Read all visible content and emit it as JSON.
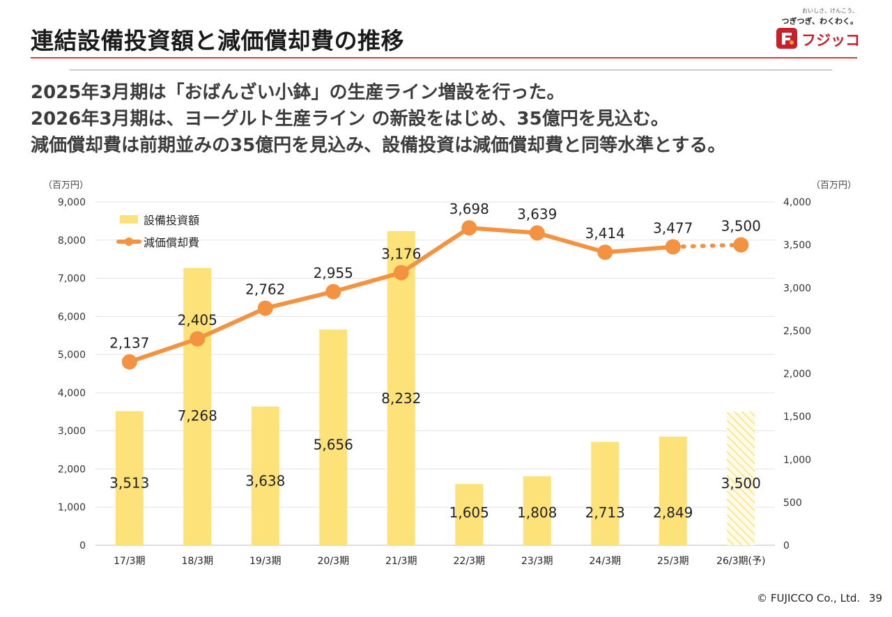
{
  "page": {
    "title": "連結設備投資額と減価償却費の推移",
    "headline": [
      "2025年3月期は「おばんざい小鉢」の生産ライン増設を行った。",
      "2026年3月期は、ヨーグルト生産ライン の新設をはじめ、35億円を見込む。",
      "減価償却費は前期並みの35億円を見込み、設備投資は減価償却費と同等水準とする。"
    ],
    "logo": {
      "tagline1": "おいしさ、けんこう、",
      "tagline2": "つぎつぎ、わくわく。",
      "wordmark": "フジッコ",
      "colors": {
        "red": "#c6202c",
        "orange": "#f0a020"
      }
    },
    "footer": {
      "copyright": "© FUJICCO Co., Ltd.",
      "page_number": "39"
    }
  },
  "chart_data": {
    "type": "bar",
    "categories": [
      "17/3期",
      "18/3期",
      "19/3期",
      "20/3期",
      "21/3期",
      "22/3期",
      "23/3期",
      "24/3期",
      "25/3期",
      "26/3期(予)"
    ],
    "y_left": {
      "unit": "（百万円）",
      "range": [
        0,
        9000
      ],
      "ticks": [
        0,
        1000,
        2000,
        3000,
        4000,
        5000,
        6000,
        7000,
        8000,
        9000
      ],
      "tick_labels": [
        "0",
        "1,000",
        "2,000",
        "3,000",
        "4,000",
        "5,000",
        "6,000",
        "7,000",
        "8,000",
        "9,000"
      ]
    },
    "y_right": {
      "unit": "（百万円）",
      "range": [
        0,
        4000
      ],
      "ticks": [
        0,
        500,
        1000,
        1500,
        2000,
        2500,
        3000,
        3500,
        4000
      ],
      "tick_labels": [
        "0",
        "500",
        "1,000",
        "1,500",
        "2,000",
        "2,500",
        "3,000",
        "3,500",
        "4,000"
      ]
    },
    "grid": true,
    "legend_position": "top-left",
    "series": [
      {
        "name": "設備投資額",
        "type": "bar",
        "axis": "left",
        "color": "#fde27a",
        "values": [
          3513,
          7268,
          3638,
          5656,
          8232,
          1605,
          1808,
          2713,
          2849,
          3500
        ],
        "labels": [
          "3,513",
          "7,268",
          "3,638",
          "5,656",
          "8,232",
          "1,605",
          "1,808",
          "2,713",
          "2,849",
          "3,500"
        ],
        "forecast_index": 9
      },
      {
        "name": "減価償却費",
        "type": "line",
        "axis": "right",
        "color": "#f39240",
        "values": [
          2137,
          2405,
          2762,
          2955,
          3176,
          3698,
          3639,
          3414,
          3477,
          3500
        ],
        "labels": [
          "2,137",
          "2,405",
          "2,762",
          "2,955",
          "3,176",
          "3,698",
          "3,639",
          "3,414",
          "3,477",
          "3,500"
        ],
        "forecast_index": 9
      }
    ]
  }
}
